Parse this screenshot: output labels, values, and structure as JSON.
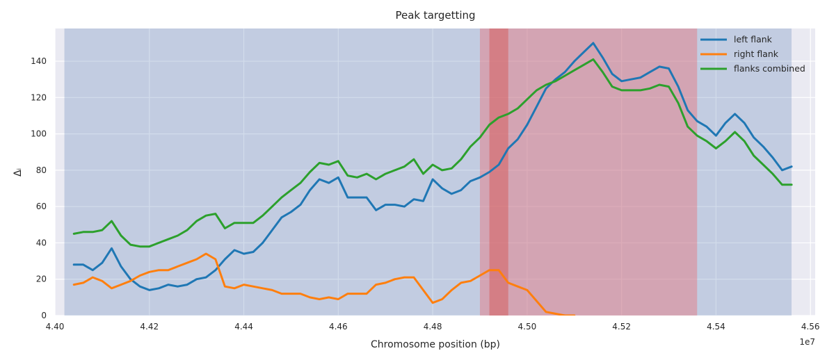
{
  "chart_data": {
    "type": "line",
    "title": "Peak targetting",
    "xlabel": "Chromosome position (bp)",
    "ylabel": "Δᵢ",
    "x_offset_label": "1e7",
    "xlim": [
      44.0,
      45.61
    ],
    "ylim": [
      0,
      158
    ],
    "x_ticks": [
      44.0,
      44.2,
      44.4,
      44.6,
      44.8,
      45.0,
      45.2,
      45.4,
      45.6
    ],
    "x_tick_labels": [
      "4.40",
      "4.42",
      "4.44",
      "4.46",
      "4.48",
      "4.50",
      "4.52",
      "4.54",
      "4.56"
    ],
    "y_ticks": [
      0,
      20,
      40,
      60,
      80,
      100,
      120,
      140
    ],
    "y_tick_labels": [
      "0",
      "20",
      "40",
      "60",
      "80",
      "100",
      "120",
      "140"
    ],
    "grid": true,
    "legend_position": "top-right",
    "regions": [
      {
        "x0": 44.02,
        "x1": 45.56,
        "color": "#4c72b0",
        "opacity": 0.25
      },
      {
        "x0": 44.9,
        "x1": 45.36,
        "color": "#e8747c",
        "opacity": 0.45
      },
      {
        "x0": 44.92,
        "x1": 44.96,
        "color": "#d65f5f",
        "opacity": 0.55
      }
    ],
    "series": [
      {
        "name": "left flank",
        "color": "#1f77b4",
        "x": [
          44.04,
          44.06,
          44.08,
          44.1,
          44.12,
          44.14,
          44.16,
          44.18,
          44.2,
          44.22,
          44.24,
          44.26,
          44.28,
          44.3,
          44.32,
          44.34,
          44.36,
          44.38,
          44.4,
          44.42,
          44.44,
          44.46,
          44.48,
          44.5,
          44.52,
          44.54,
          44.56,
          44.58,
          44.6,
          44.62,
          44.64,
          44.66,
          44.68,
          44.7,
          44.72,
          44.74,
          44.76,
          44.78,
          44.8,
          44.82,
          44.84,
          44.86,
          44.88,
          44.9,
          44.92,
          44.94,
          44.96,
          44.98,
          45.0,
          45.02,
          45.04,
          45.06,
          45.08,
          45.1,
          45.12,
          45.14,
          45.16,
          45.18,
          45.2,
          45.22,
          45.24,
          45.26,
          45.28,
          45.3,
          45.32,
          45.34,
          45.36,
          45.38,
          45.4,
          45.42,
          45.44,
          45.46,
          45.48,
          45.5,
          45.52,
          45.54,
          45.56
        ],
        "y": [
          28,
          28,
          25,
          29,
          37,
          27,
          20,
          16,
          14,
          15,
          17,
          16,
          17,
          20,
          21,
          25,
          31,
          36,
          34,
          35,
          40,
          47,
          54,
          57,
          61,
          69,
          75,
          73,
          76,
          65,
          65,
          65,
          58,
          61,
          61,
          60,
          64,
          63,
          75,
          70,
          67,
          69,
          74,
          76,
          79,
          83,
          92,
          97,
          105,
          115,
          125,
          130,
          134,
          140,
          145,
          150,
          142,
          133,
          129,
          130,
          131,
          134,
          137,
          136,
          126,
          113,
          107,
          104,
          99,
          106,
          111,
          106,
          98,
          93,
          87,
          80,
          82
        ]
      },
      {
        "name": "right flank",
        "color": "#ff7f0e",
        "x": [
          44.04,
          44.06,
          44.08,
          44.1,
          44.12,
          44.14,
          44.16,
          44.18,
          44.2,
          44.22,
          44.24,
          44.26,
          44.28,
          44.3,
          44.32,
          44.34,
          44.36,
          44.38,
          44.4,
          44.42,
          44.44,
          44.46,
          44.48,
          44.5,
          44.52,
          44.54,
          44.56,
          44.58,
          44.6,
          44.62,
          44.64,
          44.66,
          44.68,
          44.7,
          44.72,
          44.74,
          44.76,
          44.78,
          44.8,
          44.82,
          44.84,
          44.86,
          44.88,
          44.9,
          44.92,
          44.94,
          44.96,
          44.98,
          45.0,
          45.02,
          45.04,
          45.06,
          45.08,
          45.1
        ],
        "y": [
          17,
          18,
          21,
          19,
          15,
          17,
          19,
          22,
          24,
          25,
          25,
          27,
          29,
          31,
          34,
          31,
          16,
          15,
          17,
          16,
          15,
          14,
          12,
          12,
          12,
          10,
          9,
          10,
          9,
          12,
          12,
          12,
          17,
          18,
          20,
          21,
          21,
          14,
          7,
          9,
          14,
          18,
          19,
          22,
          25,
          25,
          18,
          16,
          14,
          8,
          2,
          1,
          0,
          0
        ]
      },
      {
        "name": "flanks combined",
        "color": "#2ca02c",
        "x": [
          44.04,
          44.06,
          44.08,
          44.1,
          44.12,
          44.14,
          44.16,
          44.18,
          44.2,
          44.22,
          44.24,
          44.26,
          44.28,
          44.3,
          44.32,
          44.34,
          44.36,
          44.38,
          44.4,
          44.42,
          44.44,
          44.46,
          44.48,
          44.5,
          44.52,
          44.54,
          44.56,
          44.58,
          44.6,
          44.62,
          44.64,
          44.66,
          44.68,
          44.7,
          44.72,
          44.74,
          44.76,
          44.78,
          44.8,
          44.82,
          44.84,
          44.86,
          44.88,
          44.9,
          44.92,
          44.94,
          44.96,
          44.98,
          45.0,
          45.02,
          45.04,
          45.06,
          45.08,
          45.1,
          45.12,
          45.14,
          45.16,
          45.18,
          45.2,
          45.22,
          45.24,
          45.26,
          45.28,
          45.3,
          45.32,
          45.34,
          45.36,
          45.38,
          45.4,
          45.42,
          45.44,
          45.46,
          45.48,
          45.5,
          45.52,
          45.54,
          45.56
        ],
        "y": [
          45,
          46,
          46,
          47,
          52,
          44,
          39,
          38,
          38,
          40,
          42,
          44,
          47,
          52,
          55,
          56,
          48,
          51,
          51,
          51,
          55,
          60,
          65,
          69,
          73,
          79,
          84,
          83,
          85,
          77,
          76,
          78,
          75,
          78,
          80,
          82,
          86,
          78,
          83,
          80,
          81,
          86,
          93,
          98,
          105,
          109,
          111,
          114,
          119,
          124,
          127,
          129,
          132,
          135,
          138,
          141,
          134,
          126,
          124,
          124,
          124,
          125,
          127,
          126,
          117,
          104,
          99,
          96,
          92,
          96,
          101,
          96,
          88,
          83,
          78,
          72,
          72
        ]
      }
    ]
  }
}
